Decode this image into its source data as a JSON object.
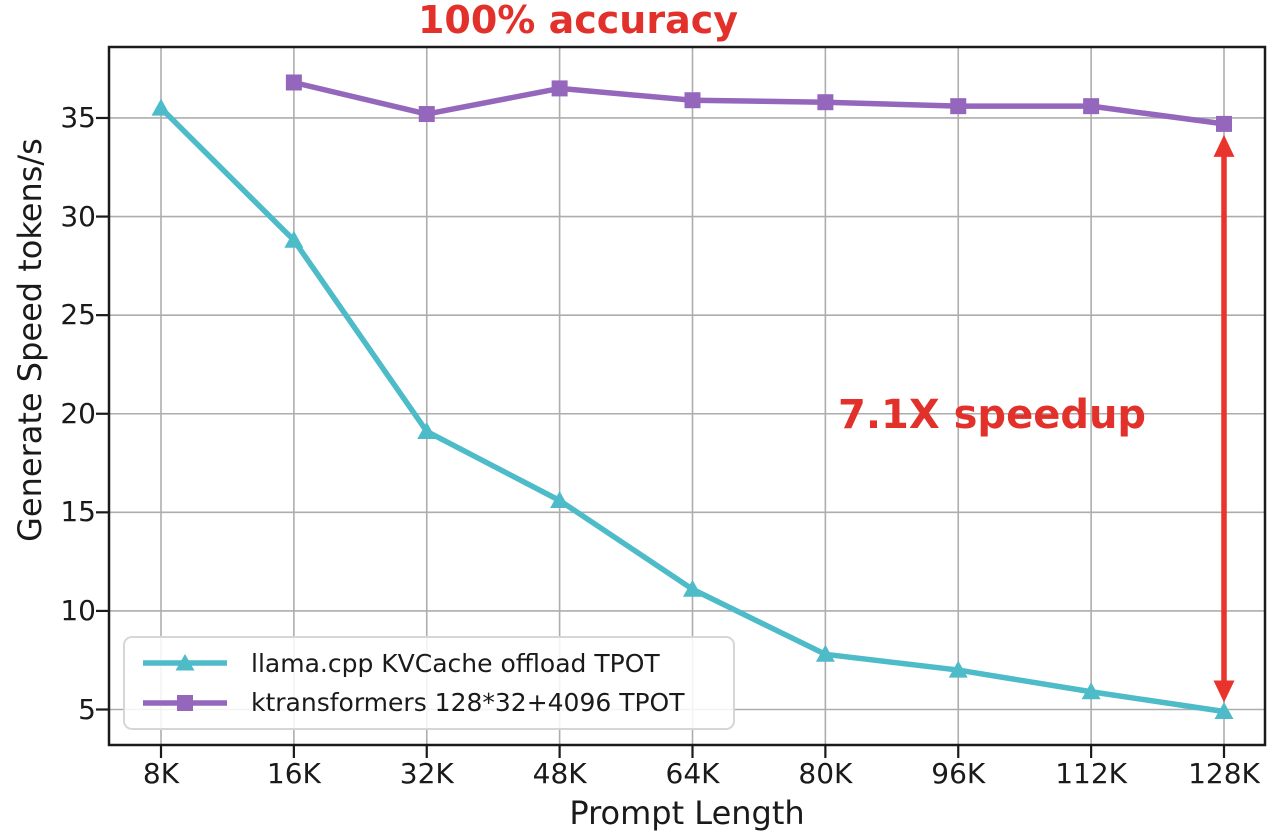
{
  "chart_data": {
    "type": "line",
    "title": "100% accuracy",
    "xlabel": "Prompt Length",
    "ylabel": "Generate Speed tokens/s",
    "categories": [
      "8K",
      "16K",
      "32K",
      "48K",
      "64K",
      "80K",
      "96K",
      "112K",
      "128K"
    ],
    "y_ticks": [
      5,
      10,
      15,
      20,
      25,
      30,
      35
    ],
    "ylim": [
      3.2,
      38.6
    ],
    "grid": true,
    "grid_color": "#adadad",
    "spine_color": "#1a1a1a",
    "legend_position": "lower-left",
    "series": [
      {
        "name": "llama.cpp KVCache offload TPOT",
        "color": "#4DBCC8",
        "marker": "triangle",
        "values": [
          35.5,
          28.8,
          19.1,
          15.6,
          11.1,
          7.8,
          7.0,
          5.9,
          4.9
        ]
      },
      {
        "name": "ktransformers 128*32+4096 TPOT",
        "color": "#9467BD",
        "marker": "square",
        "values": [
          null,
          36.8,
          35.2,
          36.5,
          35.9,
          35.8,
          35.6,
          35.6,
          34.7
        ]
      }
    ],
    "annotation": {
      "text": "7.1X speedup",
      "color": "#E2312B"
    },
    "arrow": {
      "category": "128K",
      "top_series": 1,
      "bottom_series": 0,
      "color": "#E8342C"
    },
    "title_color": "#E2312B"
  }
}
